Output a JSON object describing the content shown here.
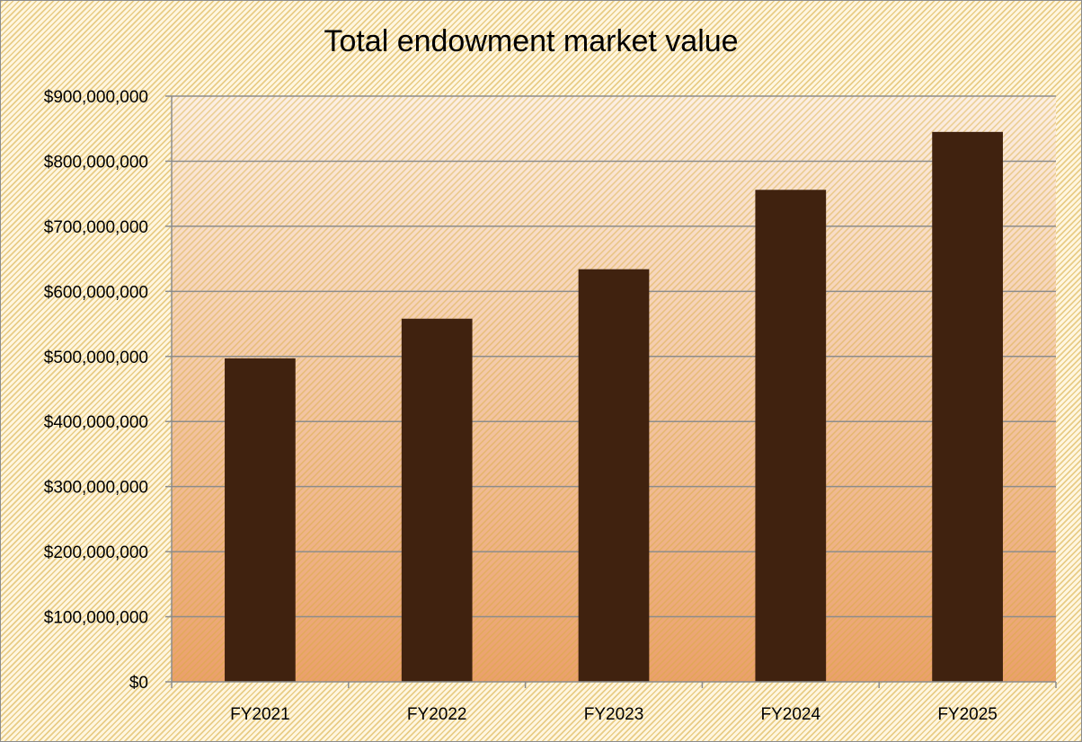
{
  "chart_data": {
    "type": "bar",
    "title": "Total endowment market value",
    "categories": [
      "FY2021",
      "FY2022",
      "FY2023",
      "FY2024",
      "FY2025"
    ],
    "values": [
      497000000,
      558000000,
      634000000,
      756000000,
      845000000
    ],
    "ylim": [
      0,
      900000000
    ],
    "yticks": [
      0,
      100000000,
      200000000,
      300000000,
      400000000,
      500000000,
      600000000,
      700000000,
      800000000,
      900000000
    ],
    "ytick_labels": [
      "$0",
      "$100,000,000",
      "$200,000,000",
      "$300,000,000",
      "$400,000,000",
      "$500,000,000",
      "$600,000,000",
      "$700,000,000",
      "$800,000,000",
      "$900,000,000"
    ],
    "xlabel": "",
    "ylabel": "",
    "grid": true,
    "legend": "none",
    "colors": {
      "bar": "#40220f",
      "gridline": "#8c8c8c",
      "plot_gradient_top": "#fcefe3",
      "plot_gradient_bottom": "#eba06c"
    }
  }
}
